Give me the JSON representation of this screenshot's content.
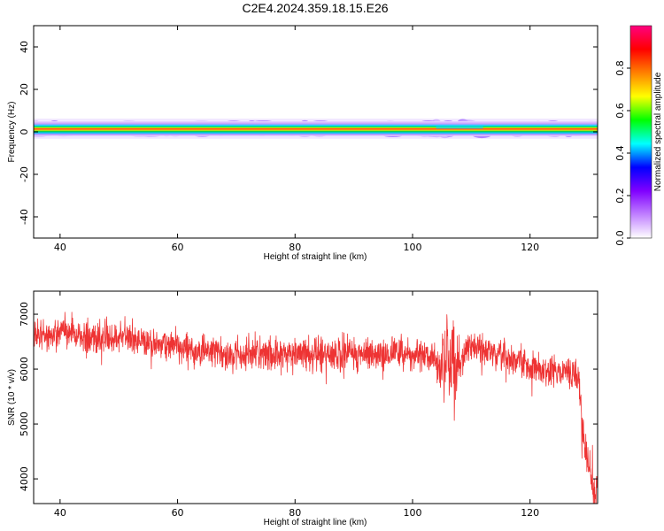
{
  "title": "C2E4.2024.359.18.15.E26",
  "chart_data": [
    {
      "type": "heatmap",
      "xlabel": "Height of straight line (km)",
      "ylabel": "Frequency (Hz)",
      "xlim": [
        35.5,
        131.5
      ],
      "ylim": [
        -50,
        50
      ],
      "xticks": [
        40,
        60,
        80,
        100,
        120
      ],
      "yticks": [
        -40,
        -20,
        0,
        20,
        40
      ],
      "band_center_hz": 1.5,
      "band_halfwidth_hz": 3.5,
      "grid": false,
      "colorbar": {
        "label": "Normalized spectral amplitude",
        "range": [
          0.0,
          1.0
        ],
        "ticks": [
          "0.0",
          "0.2",
          "0.4",
          "0.6",
          "0.8"
        ],
        "colors": [
          "#ffffff",
          "#c080ff",
          "#8000ff",
          "#0000ff",
          "#00ffff",
          "#00ff00",
          "#ffff00",
          "#ff8000",
          "#ff0000",
          "#ff0080"
        ]
      }
    },
    {
      "type": "line",
      "xlabel": "Height of straight line (km)",
      "ylabel": "SNR (10 * v/v)",
      "xlim": [
        35.5,
        131.5
      ],
      "ylim": [
        3550,
        7420
      ],
      "xticks": [
        40,
        60,
        80,
        100,
        120
      ],
      "yticks": [
        4000,
        5000,
        6000,
        7000
      ],
      "color": "#ee3333",
      "grid": false,
      "x": [
        36,
        38,
        40,
        42,
        44,
        46,
        48,
        50,
        52,
        54,
        56,
        58,
        60,
        62,
        64,
        66,
        68,
        70,
        72,
        74,
        76,
        78,
        80,
        82,
        84,
        86,
        88,
        90,
        92,
        94,
        96,
        98,
        100,
        102,
        104,
        105,
        106,
        107,
        108,
        109,
        110,
        112,
        114,
        116,
        118,
        120,
        122,
        124,
        126,
        127,
        128,
        128.5,
        129,
        129.5,
        130,
        130.5,
        131,
        131.5
      ],
      "values": [
        6650,
        6600,
        6700,
        6680,
        6600,
        6560,
        6580,
        6600,
        6620,
        6500,
        6480,
        6450,
        6420,
        6350,
        6300,
        6320,
        6250,
        6300,
        6280,
        6300,
        6250,
        6260,
        6280,
        6250,
        6300,
        6300,
        6280,
        6300,
        6250,
        6300,
        6280,
        6350,
        6200,
        6300,
        6150,
        6000,
        6400,
        6050,
        6100,
        6300,
        6450,
        6350,
        6250,
        6200,
        6150,
        6050,
        6000,
        6000,
        5950,
        5950,
        5900,
        5600,
        4900,
        4500,
        4200,
        3950,
        3850,
        3900
      ],
      "noise_amplitude": 170
    }
  ]
}
